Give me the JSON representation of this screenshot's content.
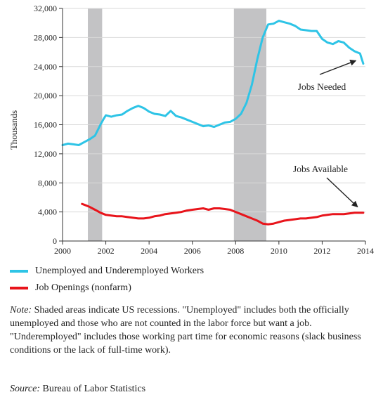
{
  "chart_data": {
    "type": "line",
    "ylabel": "Thousands",
    "xlim": [
      2000,
      2014
    ],
    "ylim": [
      0,
      32000
    ],
    "x_ticks": [
      "2000",
      "2002",
      "2004",
      "2006",
      "2008",
      "2010",
      "2012",
      "2014"
    ],
    "y_ticks": [
      "0",
      "4,000",
      "8,000",
      "12,000",
      "16,000",
      "20,000",
      "24,000",
      "28,000",
      "32,000"
    ],
    "recessions": [
      [
        2001.17,
        2001.83
      ],
      [
        2007.92,
        2009.42
      ]
    ],
    "grid": "horizontal",
    "series": [
      {
        "name": "Unemployed and Underemployed Workers",
        "color": "#2ec4e6",
        "x": [
          2000.0,
          2000.25,
          2000.5,
          2000.75,
          2001.0,
          2001.25,
          2001.5,
          2001.75,
          2001.9,
          2002.0,
          2002.25,
          2002.5,
          2002.75,
          2003.0,
          2003.25,
          2003.5,
          2003.75,
          2003.9,
          2004.0,
          2004.25,
          2004.5,
          2004.75,
          2005.0,
          2005.25,
          2005.5,
          2005.75,
          2006.0,
          2006.25,
          2006.5,
          2006.75,
          2007.0,
          2007.25,
          2007.5,
          2007.75,
          2008.0,
          2008.25,
          2008.5,
          2008.75,
          2009.0,
          2009.25,
          2009.5,
          2009.75,
          2010.0,
          2010.25,
          2010.5,
          2010.75,
          2011.0,
          2011.25,
          2011.5,
          2011.75,
          2012.0,
          2012.25,
          2012.5,
          2012.75,
          2013.0,
          2013.25,
          2013.5,
          2013.75,
          2013.9
        ],
        "values": [
          13200,
          13400,
          13300,
          13200,
          13600,
          14000,
          14500,
          16000,
          16800,
          17300,
          17100,
          17300,
          17400,
          17900,
          18300,
          18600,
          18300,
          18000,
          17800,
          17500,
          17400,
          17200,
          17900,
          17200,
          17000,
          16700,
          16400,
          16100,
          15800,
          15900,
          15700,
          16000,
          16300,
          16400,
          16800,
          17500,
          19000,
          21500,
          25000,
          28000,
          29800,
          29900,
          30300,
          30100,
          29900,
          29600,
          29100,
          29000,
          28900,
          28900,
          27800,
          27300,
          27100,
          27500,
          27300,
          26600,
          26100,
          25800,
          24400
        ]
      },
      {
        "name": "Job Openings (nonfarm)",
        "color": "#e8141b",
        "x": [
          2000.9,
          2001.0,
          2001.25,
          2001.5,
          2001.75,
          2002.0,
          2002.25,
          2002.5,
          2002.75,
          2003.0,
          2003.25,
          2003.5,
          2003.75,
          2004.0,
          2004.25,
          2004.5,
          2004.75,
          2005.0,
          2005.25,
          2005.5,
          2005.75,
          2006.0,
          2006.25,
          2006.5,
          2006.75,
          2007.0,
          2007.25,
          2007.5,
          2007.75,
          2008.0,
          2008.25,
          2008.5,
          2008.75,
          2009.0,
          2009.25,
          2009.5,
          2009.75,
          2010.0,
          2010.25,
          2010.5,
          2010.75,
          2011.0,
          2011.25,
          2011.5,
          2011.75,
          2012.0,
          2012.25,
          2012.5,
          2012.75,
          2013.0,
          2013.25,
          2013.5,
          2013.75,
          2013.9
        ],
        "values": [
          5100,
          5000,
          4700,
          4300,
          3900,
          3600,
          3500,
          3400,
          3400,
          3300,
          3200,
          3100,
          3100,
          3200,
          3400,
          3500,
          3700,
          3800,
          3900,
          4000,
          4200,
          4300,
          4400,
          4500,
          4300,
          4500,
          4500,
          4400,
          4300,
          4000,
          3700,
          3400,
          3100,
          2800,
          2400,
          2300,
          2400,
          2600,
          2800,
          2900,
          3000,
          3100,
          3100,
          3200,
          3300,
          3500,
          3600,
          3700,
          3700,
          3700,
          3800,
          3900,
          3900,
          3900
        ]
      }
    ],
    "annotations": [
      {
        "text": "Jobs Needed",
        "series": 0
      },
      {
        "text": "Jobs Available",
        "series": 1
      }
    ]
  },
  "legend": [
    {
      "label": "Unemployed and Underemployed Workers",
      "color": "#2ec4e6"
    },
    {
      "label": "Job Openings (nonfarm)",
      "color": "#e8141b"
    }
  ],
  "note": {
    "prefix": "Note:",
    "text": " Shaded areas indicate US recessions. \"Unemployed\" includes both the officially unemployed and those who are not counted in the labor force but want a job. \"Underemployed\" includes those working part time for economic reasons (slack business conditions or the lack of full-time work)."
  },
  "source": {
    "prefix": "Source:",
    "text": " Bureau of Labor Statistics"
  }
}
